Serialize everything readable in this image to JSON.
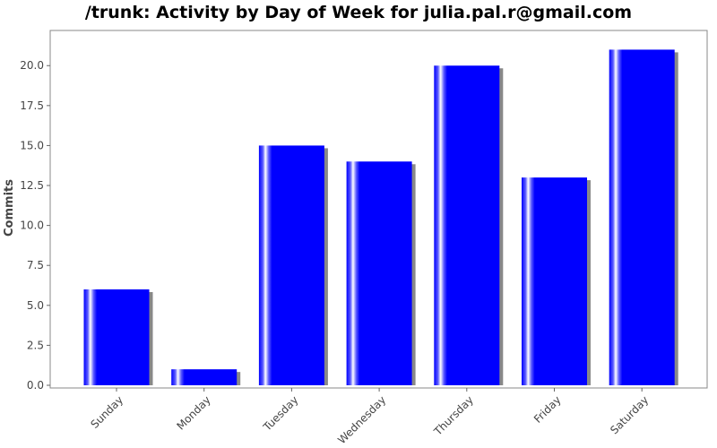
{
  "chart_data": {
    "type": "bar",
    "title": "/trunk: Activity by Day of Week for julia.pal.r@gmail.com",
    "xlabel": "",
    "ylabel": "Commits",
    "categories": [
      "Sunday",
      "Monday",
      "Tuesday",
      "Wednesday",
      "Thursday",
      "Friday",
      "Saturday"
    ],
    "values": [
      6,
      1,
      15,
      14,
      20,
      13,
      21
    ],
    "ylim": [
      0,
      22.2
    ],
    "yticks": [
      "0.0",
      "2.5",
      "5.0",
      "7.5",
      "10.0",
      "12.5",
      "15.0",
      "17.5",
      "20.0"
    ],
    "grid": false,
    "bar_color": "#0000ff",
    "shadow_color": "#888888"
  }
}
